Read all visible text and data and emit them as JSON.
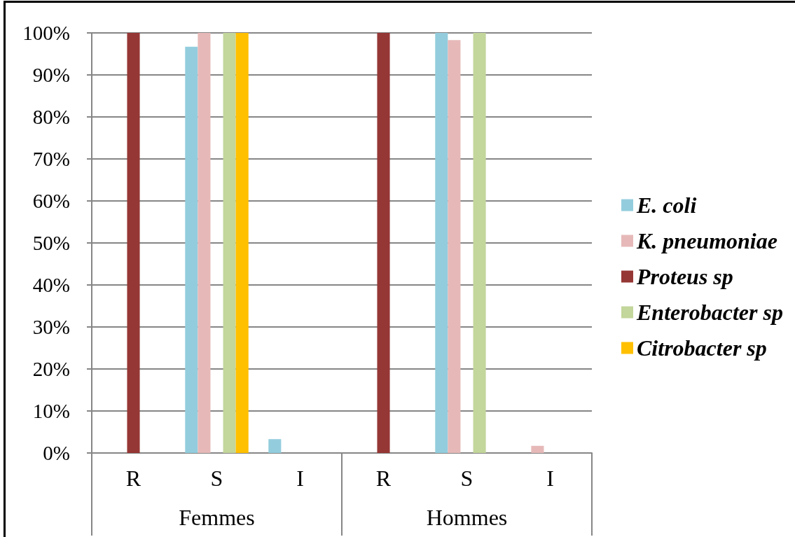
{
  "chart_data": {
    "type": "bar",
    "categories": [
      "R",
      "S",
      "I",
      "R",
      "S",
      "I"
    ],
    "annotations": [
      "Femmes",
      "Hommes"
    ],
    "series": [
      {
        "name": "E. coli",
        "color": "#93cddd",
        "values": [
          0,
          96.7,
          3.3,
          0,
          100,
          0
        ]
      },
      {
        "name": "K. pneumoniae",
        "color": "#e6b9b8",
        "values": [
          0,
          100,
          0,
          0,
          98.3,
          1.7
        ]
      },
      {
        "name": "Proteus sp",
        "color": "#953735",
        "values": [
          100,
          0,
          0,
          100,
          0,
          0
        ]
      },
      {
        "name": "Enterobacter sp",
        "color": "#c3d69b",
        "values": [
          0,
          100,
          0,
          0,
          100,
          0
        ]
      },
      {
        "name": "Citrobacter sp",
        "color": "#ffc000",
        "values": [
          0,
          100,
          0,
          0,
          0,
          0
        ]
      }
    ],
    "ylim": [
      0,
      100
    ],
    "yticks": [
      {
        "value": 0,
        "label": "0%"
      },
      {
        "value": 10,
        "label": "10%"
      },
      {
        "value": 20,
        "label": "20%"
      },
      {
        "value": 30,
        "label": "30%"
      },
      {
        "value": 40,
        "label": "40%"
      },
      {
        "value": 50,
        "label": "50%"
      },
      {
        "value": 60,
        "label": "60%"
      },
      {
        "value": 70,
        "label": "70%"
      },
      {
        "value": 80,
        "label": "80%"
      },
      {
        "value": 90,
        "label": "90%"
      },
      {
        "value": 100,
        "label": "100%"
      }
    ],
    "grid": "y",
    "legend": "right"
  }
}
